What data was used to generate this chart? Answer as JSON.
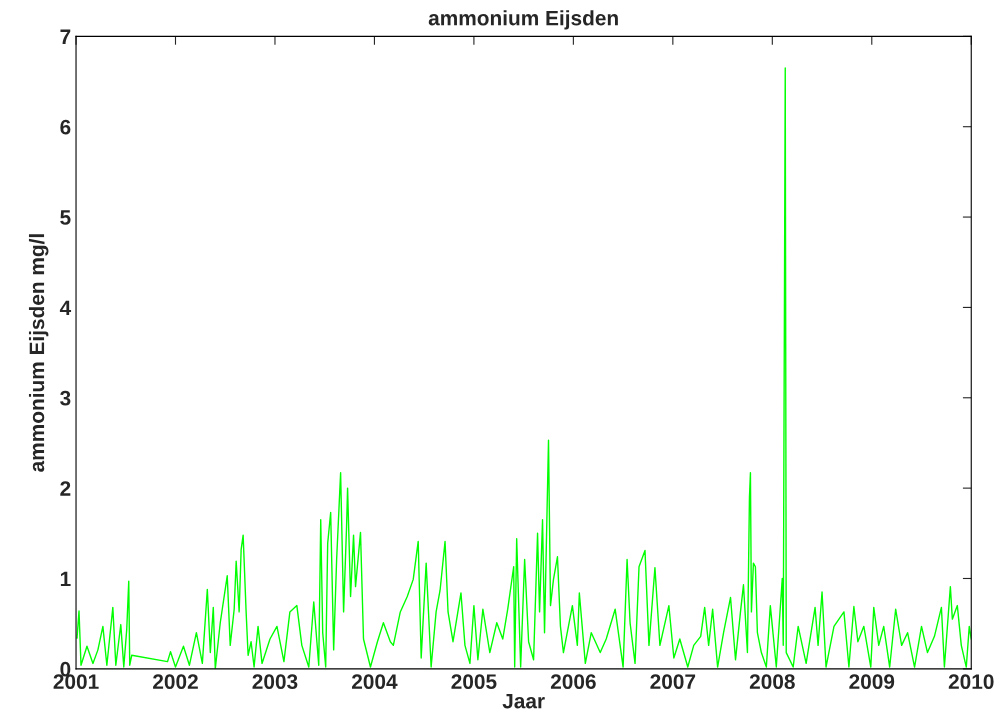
{
  "chart_data": {
    "type": "line",
    "title": "ammonium Eijsden",
    "xlabel": "Jaar",
    "ylabel": "ammonium Eijsden mg/l",
    "xlim": [
      2001,
      2010
    ],
    "xticks": [
      2001,
      2002,
      2003,
      2004,
      2005,
      2006,
      2007,
      2008,
      2009,
      2010
    ],
    "ylim": [
      0,
      7
    ],
    "yticks": [
      0,
      1,
      2,
      3,
      4,
      5,
      6,
      7
    ],
    "grid": false,
    "marker": "none",
    "line_style": "solid",
    "series": [
      {
        "color": "#00ff00",
        "x": [
          2001.01,
          2001.03,
          2001.05,
          2001.11,
          2001.17,
          2001.22,
          2001.27,
          2001.31,
          2001.37,
          2001.4,
          2001.45,
          2001.48,
          2001.51,
          2001.53,
          2001.54,
          2001.56,
          2001.92,
          2001.95,
          2002.0,
          2002.08,
          2002.14,
          2002.21,
          2002.27,
          2002.32,
          2002.35,
          2002.38,
          2002.4,
          2002.45,
          2002.52,
          2002.55,
          2002.59,
          2002.61,
          2002.64,
          2002.66,
          2002.68,
          2002.71,
          2002.73,
          2002.76,
          2002.79,
          2002.83,
          2002.87,
          2002.95,
          2003.02,
          2003.09,
          2003.15,
          2003.22,
          2003.27,
          2003.34,
          2003.39,
          2003.44,
          2003.46,
          2003.48,
          2003.51,
          2003.53,
          2003.56,
          2003.59,
          2003.62,
          2003.66,
          2003.69,
          2003.72,
          2003.73,
          2003.76,
          2003.79,
          2003.81,
          2003.86,
          2003.89,
          2003.96,
          2004.03,
          2004.09,
          2004.16,
          2004.19,
          2004.26,
          2004.33,
          2004.39,
          2004.44,
          2004.47,
          2004.52,
          2004.57,
          2004.62,
          2004.66,
          2004.71,
          2004.74,
          2004.79,
          2004.87,
          2004.91,
          2004.96,
          2005.0,
          2005.04,
          2005.09,
          2005.16,
          2005.23,
          2005.29,
          2005.34,
          2005.4,
          2005.41,
          2005.43,
          2005.47,
          2005.51,
          2005.55,
          2005.6,
          2005.64,
          2005.66,
          2005.69,
          2005.71,
          2005.75,
          2005.77,
          2005.8,
          2005.84,
          2005.87,
          2005.9,
          2005.99,
          2006.04,
          2006.06,
          2006.12,
          2006.18,
          2006.27,
          2006.33,
          2006.42,
          2006.5,
          2006.54,
          2006.57,
          2006.62,
          2006.66,
          2006.72,
          2006.76,
          2006.82,
          2006.87,
          2006.96,
          2007.01,
          2007.07,
          2007.15,
          2007.21,
          2007.28,
          2007.32,
          2007.36,
          2007.4,
          2007.45,
          2007.51,
          2007.58,
          2007.63,
          2007.68,
          2007.71,
          2007.75,
          2007.77,
          2007.78,
          2007.79,
          2007.81,
          2007.83,
          2007.85,
          2007.89,
          2007.94,
          2007.98,
          2008.04,
          2008.1,
          2008.11,
          2008.13,
          2008.14,
          2008.21,
          2008.26,
          2008.34,
          2008.43,
          2008.46,
          2008.5,
          2008.54,
          2008.62,
          2008.72,
          2008.77,
          2008.82,
          2008.86,
          2008.92,
          2008.99,
          2009.02,
          2009.07,
          2009.12,
          2009.18,
          2009.24,
          2009.3,
          2009.36,
          2009.43,
          2009.5,
          2009.56,
          2009.63,
          2009.7,
          2009.73,
          2009.79,
          2009.81,
          2009.86,
          2009.9,
          2009.95,
          2009.98,
          2010.0
        ],
        "values": [
          0.34,
          0.64,
          0.04,
          0.25,
          0.06,
          0.21,
          0.47,
          0.04,
          0.68,
          0.04,
          0.49,
          0.02,
          0.44,
          0.97,
          0.04,
          0.15,
          0.08,
          0.19,
          0.02,
          0.25,
          0.04,
          0.4,
          0.06,
          0.88,
          0.18,
          0.68,
          0.0,
          0.51,
          1.03,
          0.26,
          0.66,
          1.19,
          0.63,
          1.32,
          1.48,
          0.63,
          0.15,
          0.3,
          0.02,
          0.47,
          0.06,
          0.33,
          0.47,
          0.08,
          0.63,
          0.7,
          0.26,
          0.02,
          0.74,
          0.04,
          1.65,
          0.4,
          0.02,
          1.39,
          1.73,
          0.21,
          1.21,
          2.17,
          0.63,
          1.58,
          2.0,
          0.8,
          1.48,
          0.91,
          1.51,
          0.33,
          0.02,
          0.3,
          0.51,
          0.3,
          0.26,
          0.63,
          0.8,
          0.99,
          1.41,
          0.12,
          1.17,
          0.02,
          0.63,
          0.87,
          1.41,
          0.63,
          0.3,
          0.84,
          0.26,
          0.06,
          0.7,
          0.1,
          0.66,
          0.18,
          0.51,
          0.33,
          0.66,
          1.13,
          0.02,
          1.44,
          0.02,
          1.21,
          0.3,
          0.1,
          1.5,
          0.63,
          1.65,
          0.4,
          2.53,
          0.7,
          0.99,
          1.24,
          0.47,
          0.18,
          0.7,
          0.26,
          0.84,
          0.06,
          0.4,
          0.18,
          0.33,
          0.66,
          0.02,
          1.21,
          0.51,
          0.06,
          1.13,
          1.31,
          0.26,
          1.12,
          0.26,
          0.7,
          0.12,
          0.33,
          0.02,
          0.26,
          0.36,
          0.68,
          0.26,
          0.66,
          0.02,
          0.4,
          0.79,
          0.1,
          0.63,
          0.93,
          0.18,
          1.89,
          2.17,
          0.63,
          1.17,
          1.13,
          0.4,
          0.18,
          0.02,
          0.7,
          0.02,
          1.0,
          0.26,
          6.65,
          0.18,
          0.02,
          0.47,
          0.06,
          0.68,
          0.26,
          0.85,
          0.02,
          0.47,
          0.63,
          0.02,
          0.69,
          0.3,
          0.47,
          0.02,
          0.68,
          0.26,
          0.47,
          0.02,
          0.66,
          0.26,
          0.4,
          0.02,
          0.47,
          0.18,
          0.36,
          0.68,
          0.02,
          0.91,
          0.55,
          0.7,
          0.26,
          0.02,
          0.47,
          0.33
        ]
      }
    ]
  }
}
